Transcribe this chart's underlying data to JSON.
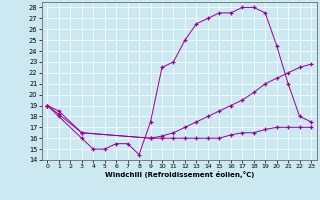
{
  "bg_color": "#cce8f0",
  "line_color": "#990099",
  "xlim": [
    -0.5,
    23.5
  ],
  "ylim": [
    14,
    28.5
  ],
  "xticks": [
    0,
    1,
    2,
    3,
    4,
    5,
    6,
    7,
    8,
    9,
    10,
    11,
    12,
    13,
    14,
    15,
    16,
    17,
    18,
    19,
    20,
    21,
    22,
    23
  ],
  "yticks": [
    14,
    15,
    16,
    17,
    18,
    19,
    20,
    21,
    22,
    23,
    24,
    25,
    26,
    27,
    28
  ],
  "xlabel": "Windchill (Refroidissement éolien,°C)",
  "series1_x": [
    0,
    1,
    3,
    4,
    5,
    6,
    7,
    8,
    9,
    10,
    11,
    12,
    13,
    14,
    15,
    16,
    17,
    18,
    19,
    20,
    21,
    22,
    23
  ],
  "series1_y": [
    19,
    18,
    16,
    15,
    15,
    15.5,
    15.5,
    14.5,
    17.5,
    22.5,
    23,
    25,
    26.5,
    27,
    27.5,
    27.5,
    28,
    28,
    27.5,
    24.5,
    21,
    18,
    17.5
  ],
  "series2_x": [
    0,
    1,
    3,
    9,
    10,
    11,
    12,
    13,
    14,
    15,
    16,
    17,
    18,
    19,
    20,
    21,
    22,
    23
  ],
  "series2_y": [
    19,
    18.2,
    16.5,
    16,
    16.2,
    16.5,
    17,
    17.5,
    18,
    18.5,
    19,
    19.5,
    20.2,
    21,
    21.5,
    22,
    22.5,
    22.8
  ],
  "series3_x": [
    0,
    1,
    3,
    9,
    10,
    11,
    12,
    13,
    14,
    15,
    16,
    17,
    18,
    19,
    20,
    21,
    22,
    23
  ],
  "series3_y": [
    19,
    18.5,
    16.5,
    16,
    16,
    16,
    16,
    16,
    16,
    16,
    16.3,
    16.5,
    16.5,
    16.8,
    17,
    17,
    17,
    17
  ]
}
